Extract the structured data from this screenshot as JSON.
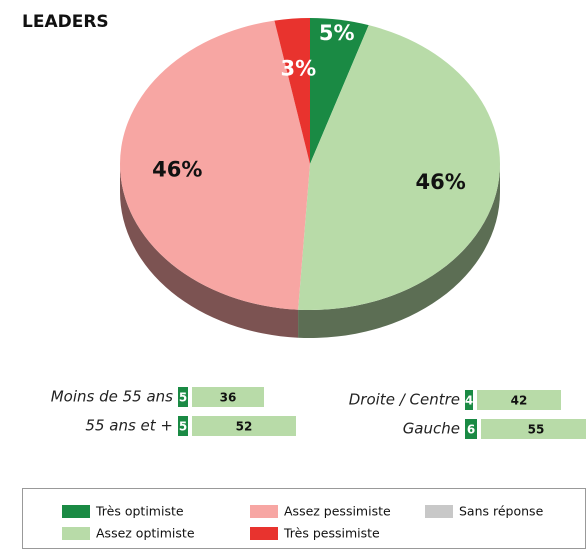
{
  "chart_data": {
    "type": "pie",
    "title": "LEADERS",
    "categories": [
      "Très optimiste",
      "Assez optimiste",
      "Assez pessimiste",
      "Très pessimiste",
      "Sans réponse"
    ],
    "colors": [
      "#1a8a44",
      "#b8dba8",
      "#f7a6a3",
      "#e8332e",
      "#c8c8c8"
    ],
    "values": [
      5,
      46,
      46,
      3,
      null
    ],
    "value_labels": [
      "5%",
      "46%",
      "46%",
      "3%",
      null
    ],
    "breakdown": [
      {
        "name": "Moins de 55 ans",
        "values": [
          5,
          36
        ]
      },
      {
        "name": "55 ans et +",
        "values": [
          5,
          52
        ]
      },
      {
        "name": "Droite / Centre",
        "values": [
          4,
          42
        ]
      },
      {
        "name": "Gauche",
        "values": [
          6,
          55
        ]
      }
    ]
  }
}
